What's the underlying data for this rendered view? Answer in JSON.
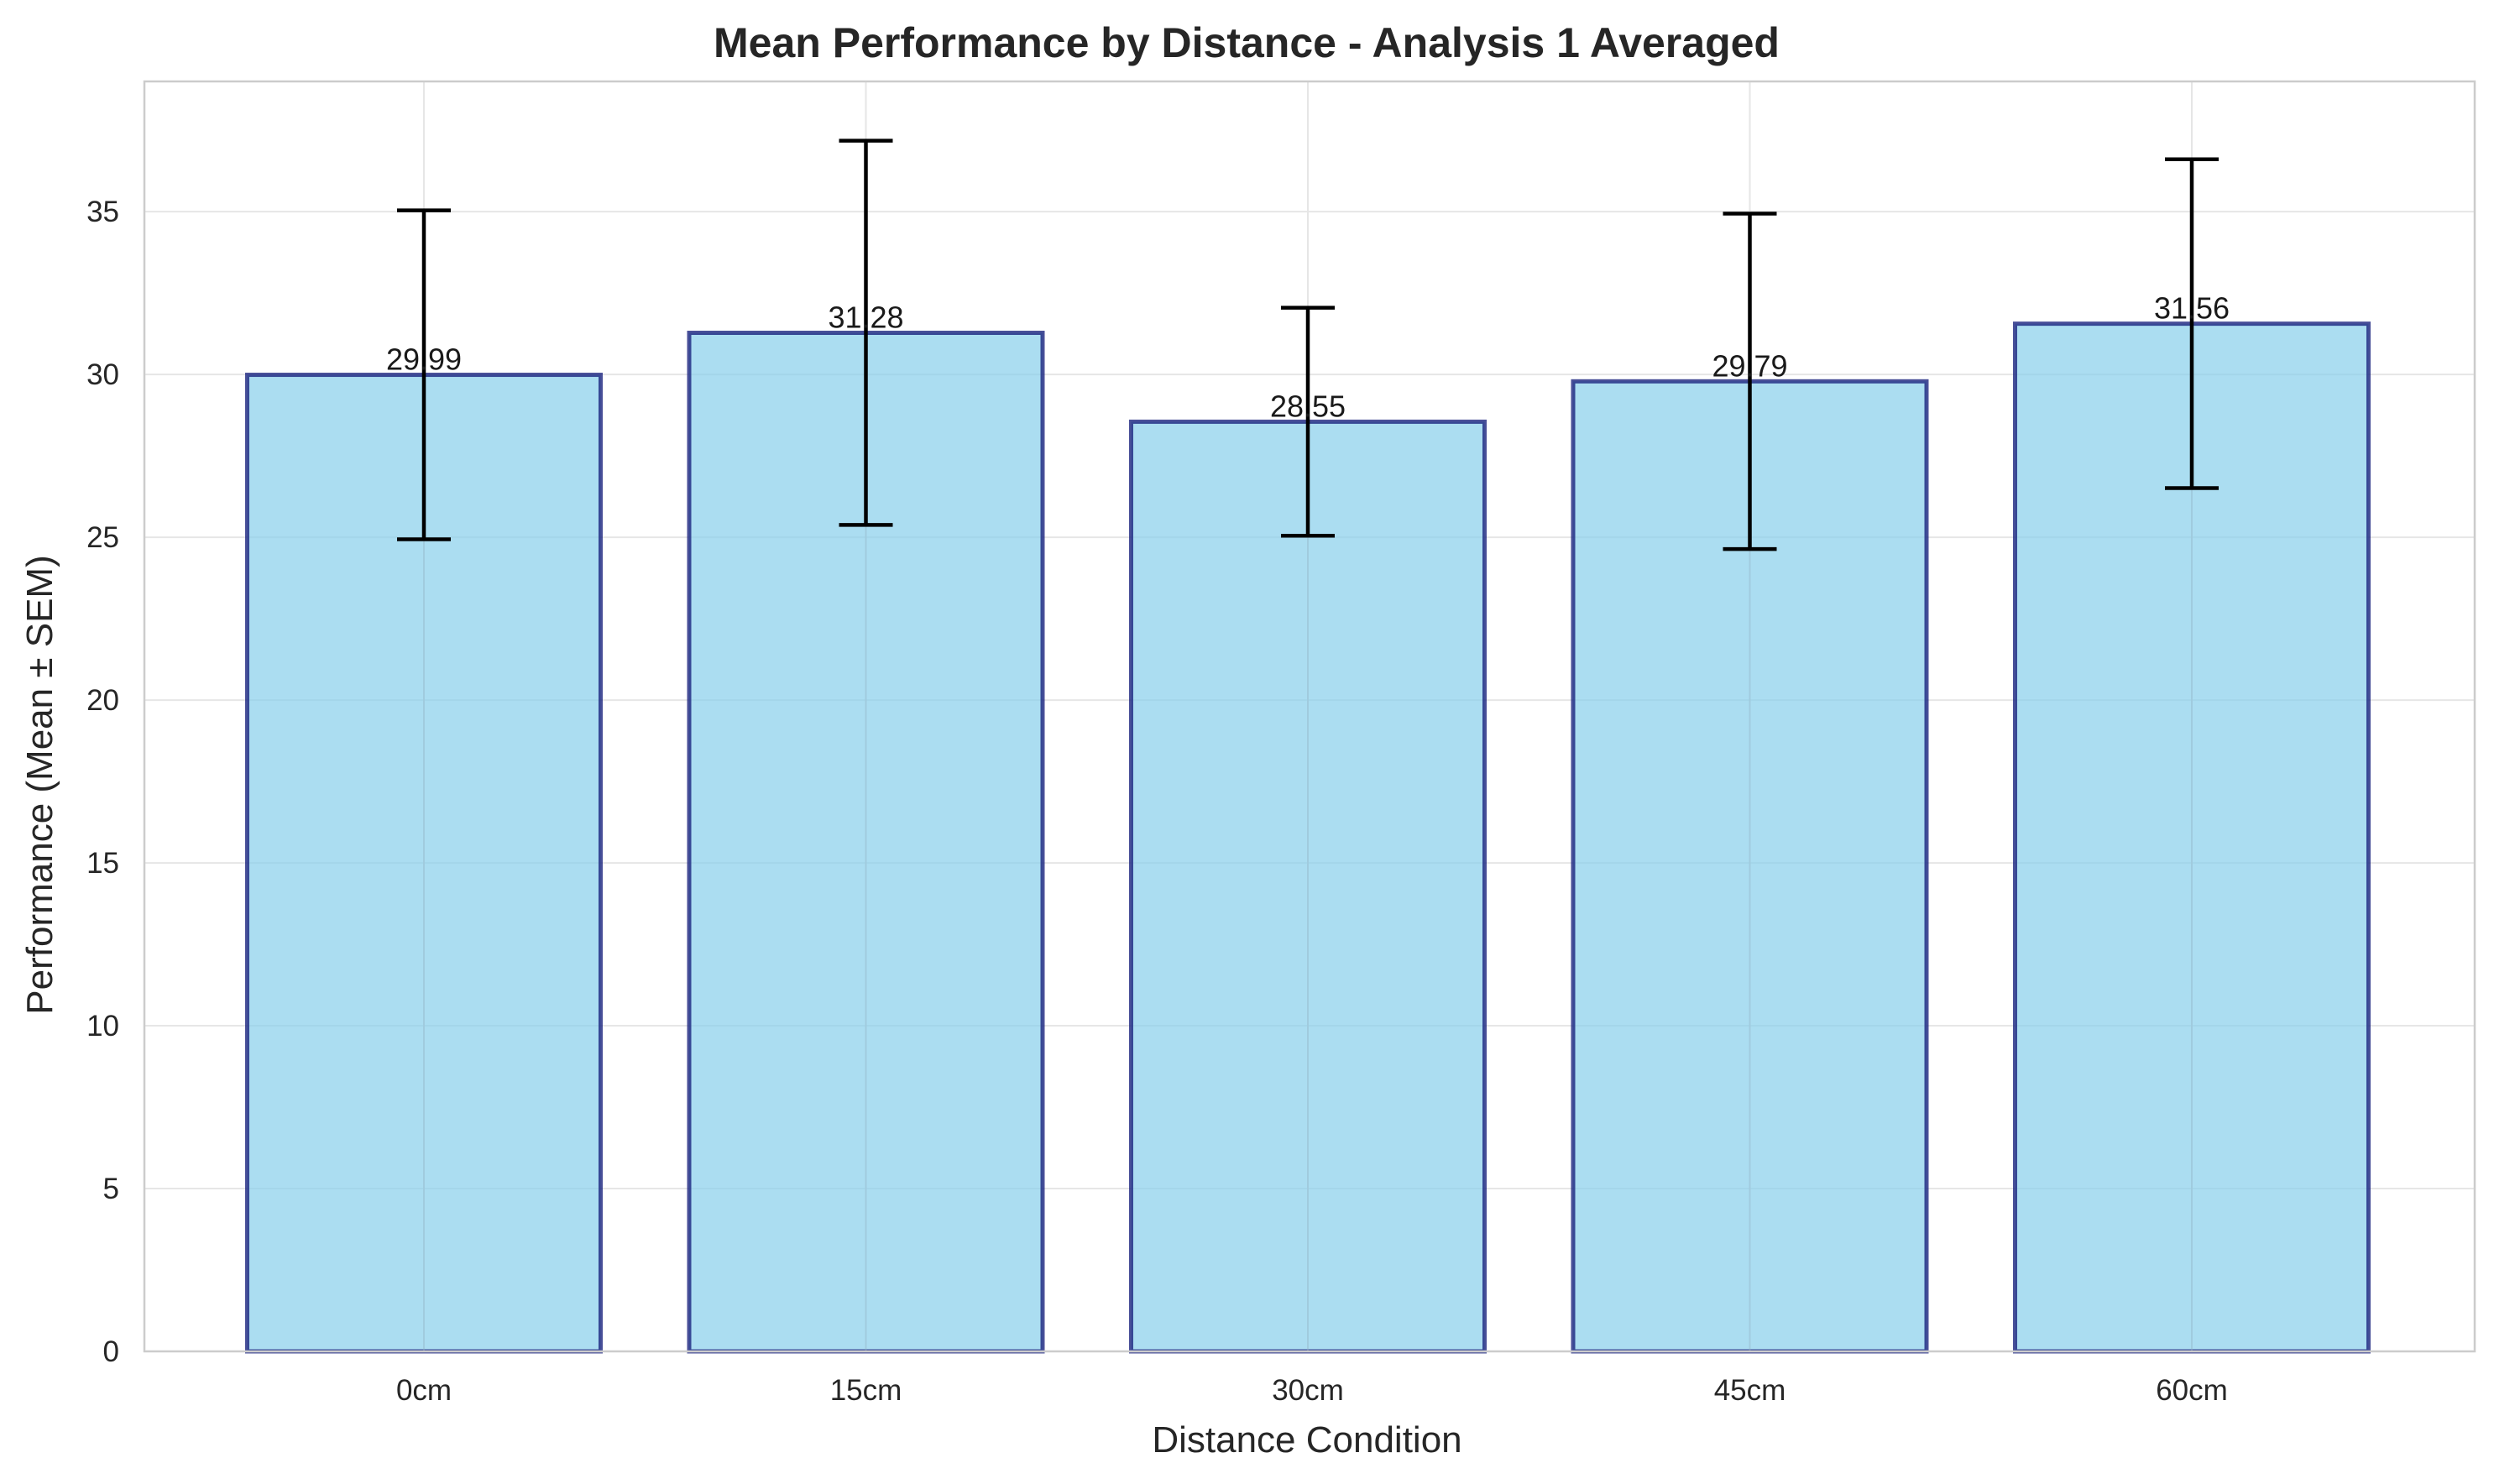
{
  "chart_data": {
    "type": "bar",
    "title": "Mean Performance by Distance - Analysis 1 Averaged",
    "xlabel": "Distance Condition",
    "ylabel": "Performance (Mean ± SEM)",
    "categories": [
      "0cm",
      "15cm",
      "30cm",
      "45cm",
      "60cm"
    ],
    "values": [
      29.99,
      31.28,
      28.55,
      29.79,
      31.56
    ],
    "value_labels": [
      "29.99",
      "31.28",
      "28.55",
      "29.79",
      "31.56"
    ],
    "errors": [
      5.05,
      5.9,
      3.5,
      5.15,
      5.05
    ],
    "ylim": [
      0,
      39
    ],
    "yticks": [
      0,
      5,
      10,
      15,
      20,
      25,
      30,
      35
    ],
    "grid": true,
    "colors": {
      "bar_fill": "#87ceeb",
      "bar_edge": "#1a237e",
      "error_bar": "#000000",
      "grid": "#e6e6e6",
      "spine": "#cccccc"
    }
  }
}
